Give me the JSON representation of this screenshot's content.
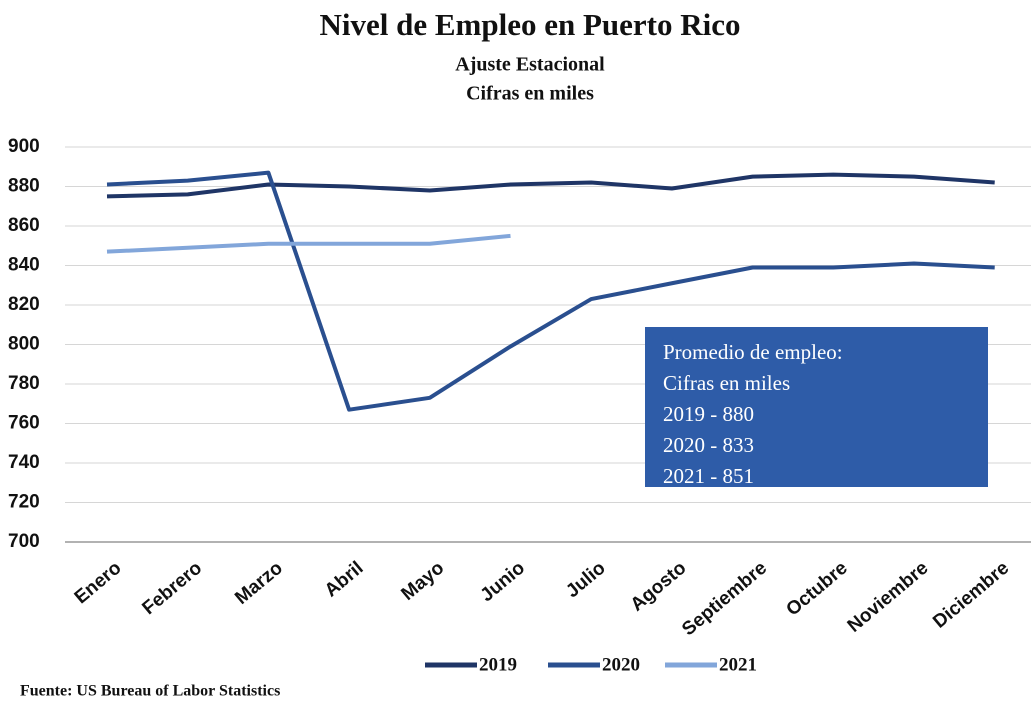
{
  "chart_data": {
    "type": "line",
    "title": "Nivel de Empleo en Puerto Rico",
    "subtitle": [
      "Ajuste Estacional",
      "Cifras en miles"
    ],
    "categories": [
      "Enero",
      "Febrero",
      "Marzo",
      "Abril",
      "Mayo",
      "Junio",
      "Julio",
      "Agosto",
      "Septiembre",
      "Octubre",
      "Noviembre",
      "Diciembre"
    ],
    "series": [
      {
        "name": "2019",
        "color": "#1f3566",
        "values": [
          875,
          876,
          881,
          880,
          878,
          881,
          882,
          879,
          885,
          886,
          885,
          882
        ]
      },
      {
        "name": "2020",
        "color": "#2a4f8f",
        "values": [
          881,
          883,
          887,
          767,
          773,
          799,
          823,
          831,
          839,
          839,
          841,
          839
        ]
      },
      {
        "name": "2021",
        "color": "#82a6da",
        "values": [
          847,
          849,
          851,
          851,
          851,
          855,
          null,
          null,
          null,
          null,
          null,
          null
        ]
      }
    ],
    "ylim": [
      700,
      900
    ],
    "yticks": [
      700,
      720,
      740,
      760,
      780,
      800,
      820,
      840,
      860,
      880,
      900
    ],
    "grid": true,
    "legend": "bottom",
    "annotation": {
      "lines": [
        "Promedio de empleo:",
        "Cifras en miles",
        "2019 - 880",
        "2020 - 833",
        "2021 - 851"
      ],
      "color": "#2e5ca8"
    },
    "source": "Fuente: US Bureau of Labor Statistics"
  }
}
